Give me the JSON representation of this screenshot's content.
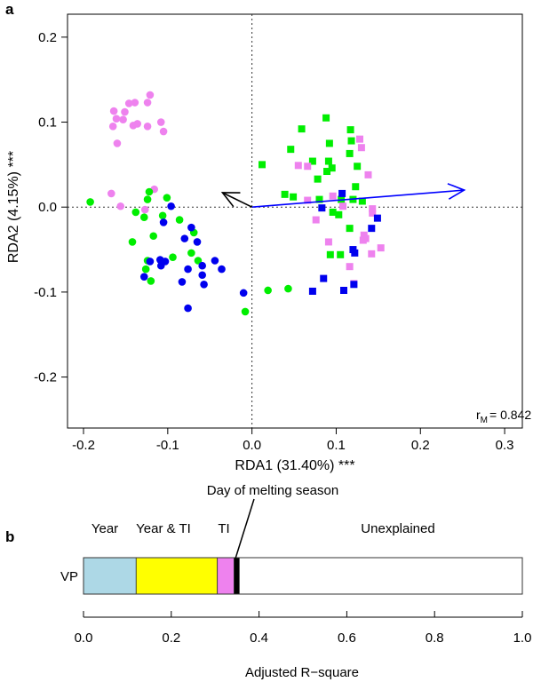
{
  "chart_data": [
    {
      "panel_label": "a",
      "type": "scatter",
      "xlabel": "RDA1 (31.40%) ***",
      "ylabel": "RDA2 (4.15%) ***",
      "xlim": [
        -0.219,
        0.321
      ],
      "ylim": [
        -0.26,
        0.227
      ],
      "xticks": [
        "-0.2",
        "-0.1",
        "0.0",
        "0.1",
        "0.2",
        "0.3"
      ],
      "xtick_values": [
        -0.2,
        -0.1,
        0.0,
        0.1,
        0.2,
        0.3
      ],
      "yticks": [
        "0.2",
        "0.1",
        "0.0",
        "-0.1",
        "-0.2"
      ],
      "ytick_values": [
        0.2,
        0.1,
        0.0,
        -0.1,
        -0.2
      ],
      "grid": false,
      "reference_lines": {
        "x": 0,
        "y": 0,
        "style": "dotted"
      },
      "annotation": {
        "r": "r",
        "sub": "M",
        "value": "= 0.842"
      },
      "arrows": [
        {
          "color": "#0000ff",
          "x": 0.252,
          "y": 0.02
        },
        {
          "color": "#000000",
          "x": -0.035,
          "y": 0.017
        }
      ],
      "series": [
        {
          "marker": "circle",
          "color": "#ee82ee",
          "points": [
            [
              -0.121,
              0.132
            ],
            [
              -0.146,
              0.122
            ],
            [
              -0.139,
              0.123
            ],
            [
              -0.124,
              0.123
            ],
            [
              -0.164,
              0.113
            ],
            [
              -0.151,
              0.112
            ],
            [
              -0.161,
              0.104
            ],
            [
              -0.153,
              0.103
            ],
            [
              -0.165,
              0.095
            ],
            [
              -0.141,
              0.096
            ],
            [
              -0.136,
              0.098
            ],
            [
              -0.124,
              0.095
            ],
            [
              -0.108,
              0.1
            ],
            [
              -0.105,
              0.089
            ],
            [
              -0.16,
              0.075
            ],
            [
              -0.167,
              0.016
            ],
            [
              -0.156,
              0.001
            ],
            [
              -0.116,
              0.021
            ],
            [
              -0.127,
              -0.003
            ]
          ]
        },
        {
          "marker": "circle",
          "color": "#00ee00",
          "points": [
            [
              -0.192,
              0.006
            ],
            [
              -0.122,
              0.018
            ],
            [
              -0.124,
              0.009
            ],
            [
              -0.101,
              0.011
            ],
            [
              -0.138,
              -0.006
            ],
            [
              -0.128,
              -0.012
            ],
            [
              -0.106,
              -0.01
            ],
            [
              -0.086,
              -0.015
            ],
            [
              -0.069,
              -0.03
            ],
            [
              -0.117,
              -0.034
            ],
            [
              -0.142,
              -0.041
            ],
            [
              -0.072,
              -0.054
            ],
            [
              -0.094,
              -0.059
            ],
            [
              -0.064,
              -0.063
            ],
            [
              -0.124,
              -0.063
            ],
            [
              -0.126,
              -0.073
            ],
            [
              -0.12,
              -0.087
            ],
            [
              -0.008,
              -0.123
            ],
            [
              0.019,
              -0.098
            ],
            [
              0.043,
              -0.096
            ]
          ]
        },
        {
          "marker": "circle",
          "color": "#0000ee",
          "points": [
            [
              -0.096,
              0.001
            ],
            [
              -0.105,
              -0.018
            ],
            [
              -0.072,
              -0.024
            ],
            [
              -0.08,
              -0.037
            ],
            [
              -0.065,
              -0.041
            ],
            [
              -0.109,
              -0.062
            ],
            [
              -0.103,
              -0.064
            ],
            [
              -0.121,
              -0.064
            ],
            [
              -0.108,
              -0.069
            ],
            [
              -0.044,
              -0.063
            ],
            [
              -0.036,
              -0.073
            ],
            [
              -0.076,
              -0.073
            ],
            [
              -0.059,
              -0.069
            ],
            [
              -0.059,
              -0.08
            ],
            [
              -0.128,
              -0.082
            ],
            [
              -0.083,
              -0.088
            ],
            [
              -0.057,
              -0.091
            ],
            [
              -0.01,
              -0.101
            ],
            [
              -0.076,
              -0.119
            ]
          ]
        },
        {
          "marker": "square",
          "color": "#00ee00",
          "points": [
            [
              0.088,
              0.105
            ],
            [
              0.059,
              0.092
            ],
            [
              0.117,
              0.091
            ],
            [
              0.118,
              0.078
            ],
            [
              0.092,
              0.075
            ],
            [
              0.046,
              0.068
            ],
            [
              0.116,
              0.063
            ],
            [
              0.072,
              0.054
            ],
            [
              0.091,
              0.054
            ],
            [
              0.012,
              0.05
            ],
            [
              0.095,
              0.046
            ],
            [
              0.089,
              0.042
            ],
            [
              0.125,
              0.048
            ],
            [
              0.078,
              0.033
            ],
            [
              0.123,
              0.024
            ],
            [
              0.039,
              0.015
            ],
            [
              0.049,
              0.012
            ],
            [
              0.08,
              0.009
            ],
            [
              0.106,
              0.009
            ],
            [
              0.12,
              0.009
            ],
            [
              0.131,
              0.007
            ],
            [
              0.096,
              -0.006
            ],
            [
              0.103,
              -0.009
            ],
            [
              0.116,
              -0.025
            ],
            [
              0.093,
              -0.056
            ],
            [
              0.105,
              -0.056
            ]
          ]
        },
        {
          "marker": "square",
          "color": "#ee82ee",
          "points": [
            [
              0.128,
              0.08
            ],
            [
              0.13,
              0.07
            ],
            [
              0.055,
              0.049
            ],
            [
              0.066,
              0.048
            ],
            [
              0.138,
              0.038
            ],
            [
              0.096,
              0.013
            ],
            [
              0.066,
              0.008
            ],
            [
              0.108,
              0.001
            ],
            [
              0.143,
              -0.002
            ],
            [
              0.143,
              -0.007
            ],
            [
              0.076,
              -0.015
            ],
            [
              0.133,
              -0.033
            ],
            [
              0.135,
              -0.037
            ],
            [
              0.132,
              -0.039
            ],
            [
              0.091,
              -0.041
            ],
            [
              0.153,
              -0.048
            ],
            [
              0.142,
              -0.055
            ],
            [
              0.116,
              -0.07
            ],
            [
              0.121,
              -0.09
            ]
          ]
        },
        {
          "marker": "square",
          "color": "#0000ee",
          "points": [
            [
              0.107,
              0.016
            ],
            [
              0.083,
              -0.001
            ],
            [
              0.149,
              -0.013
            ],
            [
              0.142,
              -0.025
            ],
            [
              0.12,
              -0.05
            ],
            [
              0.122,
              -0.054
            ],
            [
              0.085,
              -0.084
            ],
            [
              0.072,
              -0.099
            ],
            [
              0.109,
              -0.098
            ],
            [
              0.121,
              -0.091
            ]
          ]
        }
      ]
    },
    {
      "panel_label": "b",
      "type": "bar",
      "orientation": "horizontal-stacked",
      "category": "VP",
      "xlabel": "Adjusted R−square",
      "xlim": [
        0,
        1
      ],
      "xticks": [
        "0.0",
        "0.2",
        "0.4",
        "0.6",
        "0.8",
        "1.0"
      ],
      "xtick_values": [
        0,
        0.2,
        0.4,
        0.6,
        0.8,
        1.0
      ],
      "segments": [
        {
          "label": "Year",
          "value": 0.12,
          "color": "#add8e6"
        },
        {
          "label": "Year & TI",
          "value": 0.185,
          "color": "#ffff00"
        },
        {
          "label": "TI",
          "value": 0.038,
          "color": "#ee82ee"
        },
        {
          "label": "Day of melting season",
          "value": 0.012,
          "color": "#000000"
        },
        {
          "label": "Unexplained",
          "value": 0.645,
          "color": "#ffffff"
        }
      ]
    }
  ]
}
